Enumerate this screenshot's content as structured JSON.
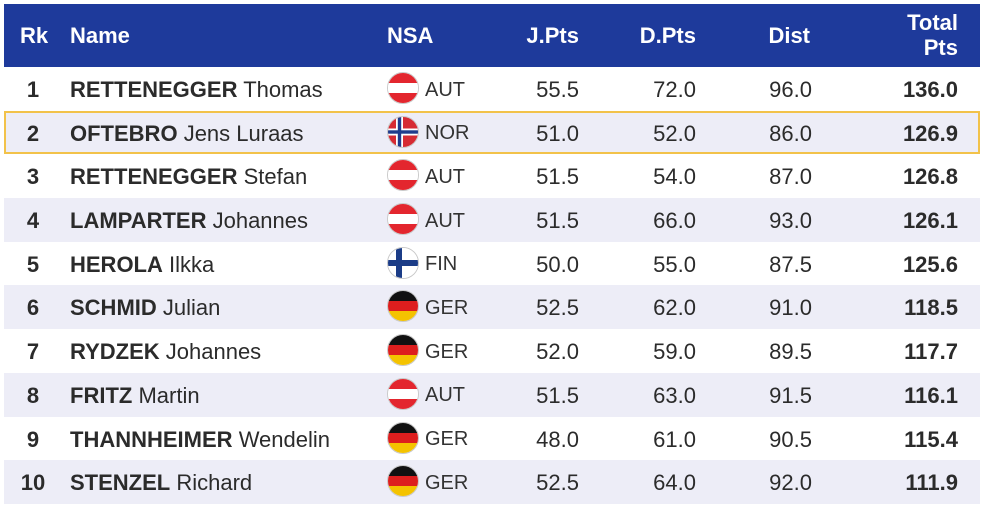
{
  "header": {
    "rank": "Rk",
    "name": "Name",
    "nsa": "NSA",
    "jpts": "J.Pts",
    "dpts": "D.Pts",
    "dist": "Dist",
    "total_line1": "Total",
    "total_line2": "Pts"
  },
  "rows": [
    {
      "rank": "1",
      "last": "RETTENEGGER",
      "first": "Thomas",
      "nsa": "AUT",
      "flag": "austria-flag-icon",
      "jpts": "55.5",
      "dpts": "72.0",
      "dist": "96.0",
      "total": "136.0"
    },
    {
      "rank": "2",
      "last": "OFTEBRO",
      "first": "Jens Luraas",
      "nsa": "NOR",
      "flag": "norway-flag-icon",
      "jpts": "51.0",
      "dpts": "52.0",
      "dist": "86.0",
      "total": "126.9",
      "highlighted": true
    },
    {
      "rank": "3",
      "last": "RETTENEGGER",
      "first": "Stefan",
      "nsa": "AUT",
      "flag": "austria-flag-icon",
      "jpts": "51.5",
      "dpts": "54.0",
      "dist": "87.0",
      "total": "126.8"
    },
    {
      "rank": "4",
      "last": "LAMPARTER",
      "first": "Johannes",
      "nsa": "AUT",
      "flag": "austria-flag-icon",
      "jpts": "51.5",
      "dpts": "66.0",
      "dist": "93.0",
      "total": "126.1"
    },
    {
      "rank": "5",
      "last": "HEROLA",
      "first": "Ilkka",
      "nsa": "FIN",
      "flag": "finland-flag-icon",
      "jpts": "50.0",
      "dpts": "55.0",
      "dist": "87.5",
      "total": "125.6"
    },
    {
      "rank": "6",
      "last": "SCHMID",
      "first": "Julian",
      "nsa": "GER",
      "flag": "germany-flag-icon",
      "jpts": "52.5",
      "dpts": "62.0",
      "dist": "91.0",
      "total": "118.5"
    },
    {
      "rank": "7",
      "last": "RYDZEK",
      "first": "Johannes",
      "nsa": "GER",
      "flag": "germany-flag-icon",
      "jpts": "52.0",
      "dpts": "59.0",
      "dist": "89.5",
      "total": "117.7"
    },
    {
      "rank": "8",
      "last": "FRITZ",
      "first": "Martin",
      "nsa": "AUT",
      "flag": "austria-flag-icon",
      "jpts": "51.5",
      "dpts": "63.0",
      "dist": "91.5",
      "total": "116.1"
    },
    {
      "rank": "9",
      "last": "THANNHEIMER",
      "first": "Wendelin",
      "nsa": "GER",
      "flag": "germany-flag-icon",
      "jpts": "48.0",
      "dpts": "61.0",
      "dist": "90.5",
      "total": "115.4"
    },
    {
      "rank": "10",
      "last": "STENZEL",
      "first": "Richard",
      "nsa": "GER",
      "flag": "germany-flag-icon",
      "jpts": "52.5",
      "dpts": "64.0",
      "dist": "92.0",
      "total": "111.9"
    }
  ],
  "colors": {
    "header_bg": "#1e3a9b",
    "highlight_border": "#f2c24a",
    "alt_row_bg": "#ededf7"
  }
}
